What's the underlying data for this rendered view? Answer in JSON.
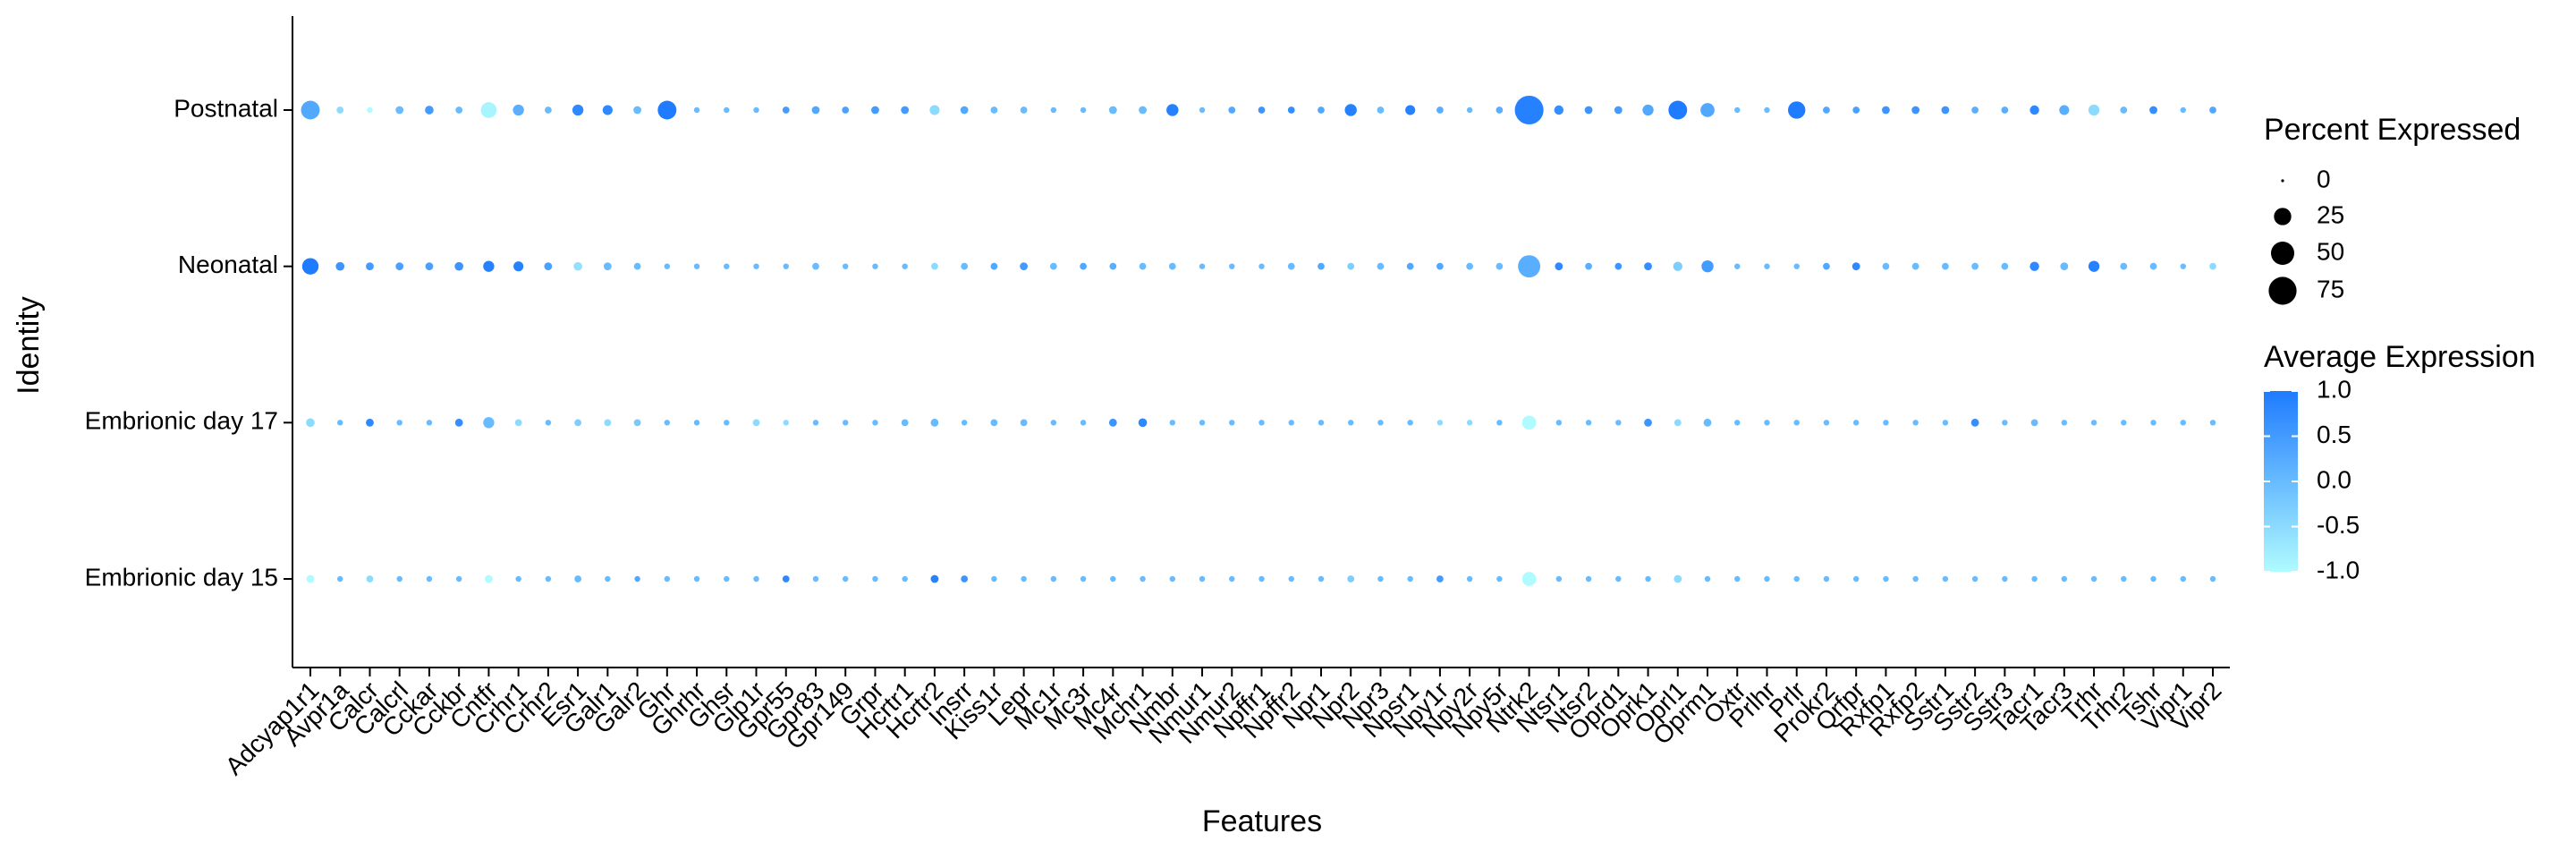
{
  "chart_data": {
    "type": "dotplot",
    "x_label": "Features",
    "y_label": "Identity",
    "categories": [
      "Adcyap1r1",
      "Avpr1a",
      "Calcr",
      "Calcrl",
      "Cckar",
      "Cckbr",
      "Cntfr",
      "Crhr1",
      "Crhr2",
      "Esr1",
      "Galr1",
      "Galr2",
      "Ghr",
      "Ghrhr",
      "Ghsr",
      "Glp1r",
      "Gpr55",
      "Gpr83",
      "Gpr149",
      "Grpr",
      "Hcrtr1",
      "Hcrtr2",
      "Insrr",
      "Kiss1r",
      "Lepr",
      "Mc1r",
      "Mc3r",
      "Mc4r",
      "Mchr1",
      "Nmbr",
      "Nmur1",
      "Nmur2",
      "Npffr1",
      "Npffr2",
      "Npr1",
      "Npr2",
      "Npr3",
      "Npsr1",
      "Npy1r",
      "Npy2r",
      "Npy5r",
      "Ntrk2",
      "Ntsr1",
      "Ntsr2",
      "Oprd1",
      "Oprk1",
      "Oprl1",
      "Oprm1",
      "Oxtr",
      "Prlhr",
      "Prlr",
      "Prokr2",
      "Qrfpr",
      "Rxfp1",
      "Rxfp2",
      "Sstr1",
      "Sstr2",
      "Sstr3",
      "Tacr1",
      "Tacr3",
      "Trhr",
      "Trhr2",
      "Tshr",
      "Vipr1",
      "Vipr2"
    ],
    "series": [
      {
        "name": "Postnatal",
        "values": [
          30,
          2,
          1,
          3,
          4,
          2,
          20,
          8,
          2,
          8,
          6,
          3,
          30,
          1,
          1,
          1,
          2,
          3,
          2,
          3,
          3,
          6,
          3,
          2,
          2,
          1,
          1,
          3,
          3,
          10,
          1,
          2,
          2,
          2,
          2,
          10,
          2,
          6,
          2,
          1,
          2,
          80,
          5,
          3,
          3,
          8,
          30,
          15,
          1,
          1,
          25,
          2,
          2,
          3,
          3,
          3,
          2,
          2,
          5,
          6,
          8,
          2,
          3,
          1,
          2
        ],
        "avg_expression": [
          0.3,
          -0.5,
          -1,
          0,
          0.5,
          0,
          -0.9,
          0.2,
          0,
          0.8,
          0.8,
          0,
          1,
          0,
          0,
          0,
          0.5,
          0.3,
          0.4,
          0.5,
          0.5,
          -0.5,
          0.3,
          0,
          0,
          0,
          0,
          0,
          0,
          0.9,
          0,
          0.3,
          0.6,
          0.7,
          0.3,
          0.9,
          0,
          0.9,
          0.2,
          0,
          0.2,
          0.9,
          0.7,
          0.6,
          0.5,
          0.3,
          1,
          0.3,
          0,
          0,
          1,
          0.3,
          0.4,
          0.6,
          0.6,
          0.6,
          0.2,
          0.2,
          0.8,
          0.2,
          -0.5,
          0,
          0.7,
          0,
          0.3
        ]
      },
      {
        "name": "Neonatal",
        "values": [
          22,
          4,
          3,
          3,
          3,
          4,
          8,
          6,
          3,
          4,
          3,
          2,
          1,
          1,
          1,
          1,
          1,
          2,
          1,
          1,
          1,
          2,
          2,
          2,
          3,
          2,
          2,
          2,
          2,
          2,
          1,
          1,
          1,
          2,
          2,
          2,
          2,
          2,
          2,
          2,
          2,
          45,
          3,
          2,
          2,
          3,
          5,
          10,
          1,
          1,
          1,
          2,
          3,
          2,
          2,
          2,
          2,
          2,
          5,
          3,
          8,
          2,
          2,
          1,
          2
        ],
        "avg_expression": [
          1,
          0.6,
          0.5,
          0.4,
          0.4,
          0.6,
          0.9,
          0.9,
          0.4,
          -0.6,
          0,
          0,
          0,
          0,
          0,
          0,
          0,
          0,
          0,
          0,
          0,
          -0.5,
          0,
          0.3,
          0.5,
          0,
          0.3,
          0.2,
          0,
          0,
          0,
          0,
          0,
          0,
          0.3,
          -0.3,
          0,
          0.3,
          0.3,
          0,
          0,
          0.2,
          0.8,
          0.2,
          0.6,
          0.7,
          -0.3,
          0.5,
          0,
          0,
          0,
          0.3,
          0.8,
          0,
          0,
          0,
          0,
          0,
          0.8,
          0,
          0.9,
          0,
          0,
          0,
          -0.5
        ]
      },
      {
        "name": "Embrionic day 17",
        "values": [
          4,
          1,
          3,
          1,
          1,
          3,
          8,
          2,
          1,
          2,
          2,
          2,
          1,
          1,
          1,
          2,
          1,
          1,
          1,
          1,
          2,
          3,
          1,
          2,
          2,
          1,
          1,
          3,
          4,
          1,
          1,
          1,
          1,
          1,
          1,
          1,
          1,
          1,
          1,
          1,
          1,
          15,
          1,
          1,
          1,
          3,
          2,
          3,
          1,
          1,
          1,
          1,
          1,
          1,
          1,
          1,
          3,
          1,
          2,
          1,
          1,
          1,
          1,
          1,
          1
        ],
        "avg_expression": [
          -0.5,
          0,
          0.8,
          0,
          0,
          0.7,
          0,
          -0.5,
          0,
          -0.3,
          -0.5,
          -0.2,
          0,
          0,
          0,
          -0.5,
          -0.5,
          0,
          0,
          0,
          0,
          0,
          0,
          0,
          0,
          0,
          0,
          0.6,
          0.8,
          0,
          0,
          0,
          0,
          0,
          0,
          0,
          0,
          0,
          -0.5,
          -0.5,
          0,
          -1,
          0,
          0,
          0,
          0.6,
          -0.5,
          0,
          0,
          0,
          0,
          0,
          0,
          0,
          0,
          0,
          0.7,
          0,
          0,
          0,
          0,
          0,
          0,
          0,
          0
        ]
      },
      {
        "name": "Embrionic day 15",
        "values": [
          3,
          1,
          2,
          1,
          1,
          1,
          3,
          1,
          1,
          2,
          1,
          1,
          1,
          1,
          1,
          1,
          2,
          1,
          1,
          1,
          1,
          3,
          2,
          1,
          1,
          1,
          1,
          1,
          1,
          1,
          1,
          1,
          1,
          1,
          1,
          2,
          1,
          1,
          2,
          1,
          1,
          15,
          1,
          1,
          1,
          1,
          3,
          1,
          1,
          1,
          1,
          1,
          1,
          1,
          1,
          1,
          1,
          1,
          1,
          1,
          1,
          1,
          1,
          1,
          1
        ],
        "avg_expression": [
          -1,
          0,
          -0.5,
          0,
          0,
          0,
          -1,
          0,
          0,
          0,
          0,
          0.3,
          0,
          0,
          0,
          0,
          0.8,
          0,
          0,
          0,
          0,
          0.9,
          0.6,
          0,
          0,
          0,
          0,
          0,
          0,
          0,
          0,
          0,
          0,
          0,
          0,
          -0.3,
          0,
          0,
          0.5,
          0,
          0,
          -1,
          0,
          0,
          0,
          0,
          -0.5,
          0,
          0,
          0,
          0,
          0,
          0,
          0,
          0,
          0,
          0,
          0,
          0,
          0,
          0,
          0,
          0,
          0,
          0
        ]
      }
    ],
    "size_legend_title": "Percent Expressed",
    "size_ticks": [
      0,
      25,
      50,
      75
    ],
    "color_legend_title": "Average Expression",
    "color_ticks": [
      {
        "value": 1,
        "label": "1.0"
      },
      0.5,
      {
        "value": 0,
        "label": "0.0"
      },
      -0.5,
      {
        "value": -1,
        "label": "-1.0"
      }
    ],
    "color_low": "#b0fbff",
    "color_high": "#1f7bff"
  }
}
